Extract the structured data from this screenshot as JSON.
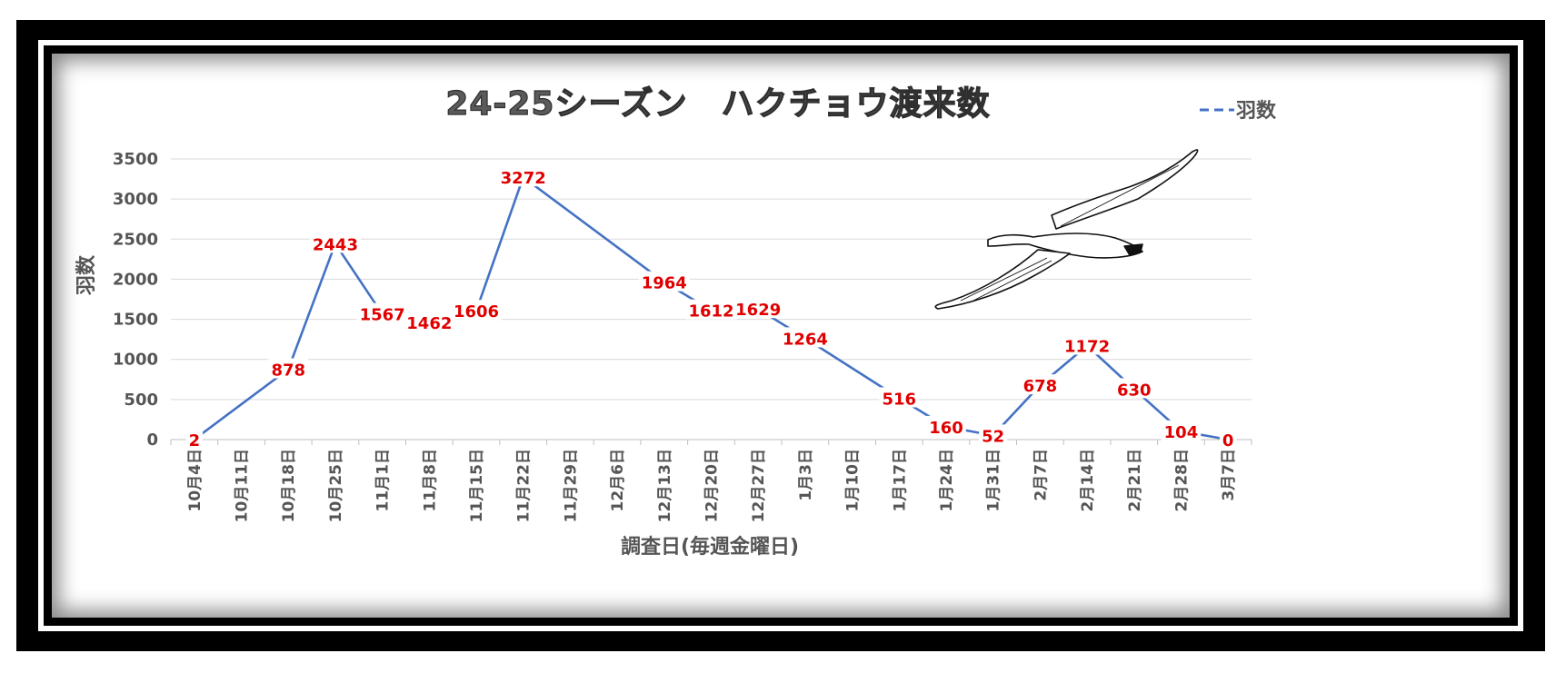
{
  "chart_data": {
    "type": "line",
    "title": "24-25シーズン　ハクチョウ渡来数",
    "xlabel": "調査日(毎週金曜日)",
    "ylabel": "羽数",
    "ylim": [
      0,
      3500
    ],
    "yticks": [
      0,
      500,
      1000,
      1500,
      2000,
      2500,
      3000,
      3500
    ],
    "grid": true,
    "legend_position": "top-right",
    "categories": [
      "10月4日",
      "10月11日",
      "10月18日",
      "10月25日",
      "11月1日",
      "11月8日",
      "11月15日",
      "11月22日",
      "11月29日",
      "12月6日",
      "12月13日",
      "12月20日",
      "12月27日",
      "1月3日",
      "1月10日",
      "1月17日",
      "1月24日",
      "1月31日",
      "2月7日",
      "2月14日",
      "2月21日",
      "2月28日",
      "3月7日"
    ],
    "series": [
      {
        "name": "羽数",
        "color": "#4472c4",
        "line_style": "dash",
        "points": [
          {
            "x": "10月4日",
            "y": 2
          },
          {
            "x": "10月18日",
            "y": 878
          },
          {
            "x": "10月25日",
            "y": 2443
          },
          {
            "x": "11月1日",
            "y": 1567
          },
          {
            "x": "11月8日",
            "y": 1462
          },
          {
            "x": "11月15日",
            "y": 1606
          },
          {
            "x": "11月22日",
            "y": 3272
          },
          {
            "x": "12月13日",
            "y": 1964
          },
          {
            "x": "12月20日",
            "y": 1612
          },
          {
            "x": "12月27日",
            "y": 1629
          },
          {
            "x": "1月3日",
            "y": 1264
          },
          {
            "x": "1月17日",
            "y": 516
          },
          {
            "x": "1月24日",
            "y": 160
          },
          {
            "x": "1月31日",
            "y": 52
          },
          {
            "x": "2月7日",
            "y": 678
          },
          {
            "x": "2月14日",
            "y": 1172
          },
          {
            "x": "2月21日",
            "y": 630
          },
          {
            "x": "2月28日",
            "y": 104
          },
          {
            "x": "3月7日",
            "y": 0
          }
        ]
      }
    ],
    "data_label_color": "#e00000",
    "decoration": "swan-illustration"
  }
}
